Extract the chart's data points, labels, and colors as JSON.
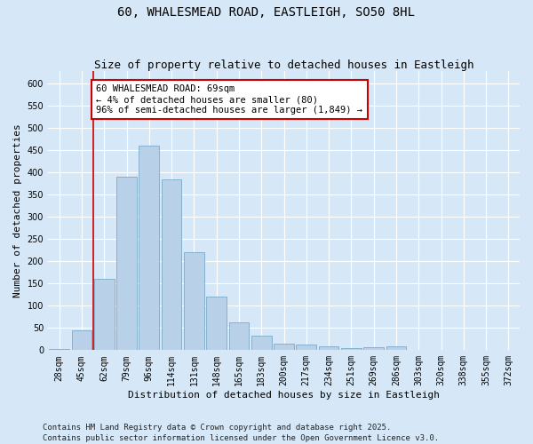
{
  "title": "60, WHALESMEAD ROAD, EASTLEIGH, SO50 8HL",
  "subtitle": "Size of property relative to detached houses in Eastleigh",
  "xlabel": "Distribution of detached houses by size in Eastleigh",
  "ylabel": "Number of detached properties",
  "categories": [
    "28sqm",
    "45sqm",
    "62sqm",
    "79sqm",
    "96sqm",
    "114sqm",
    "131sqm",
    "148sqm",
    "165sqm",
    "183sqm",
    "200sqm",
    "217sqm",
    "234sqm",
    "251sqm",
    "269sqm",
    "286sqm",
    "303sqm",
    "320sqm",
    "338sqm",
    "355sqm",
    "372sqm"
  ],
  "values": [
    2,
    45,
    160,
    390,
    460,
    385,
    220,
    120,
    63,
    33,
    14,
    13,
    8,
    5,
    6,
    8,
    0,
    0,
    0,
    0,
    0
  ],
  "bar_color": "#b8d0e8",
  "bar_edge_color": "#7aaac8",
  "vline_index": 2,
  "vline_color": "#cc0000",
  "annotation_text": "60 WHALESMEAD ROAD: 69sqm\n← 4% of detached houses are smaller (80)\n96% of semi-detached houses are larger (1,849) →",
  "annotation_box_facecolor": "#ffffff",
  "annotation_box_edgecolor": "#cc0000",
  "ylim": [
    0,
    630
  ],
  "yticks": [
    0,
    50,
    100,
    150,
    200,
    250,
    300,
    350,
    400,
    450,
    500,
    550,
    600
  ],
  "background_color": "#d6e8f7",
  "plot_background_color": "#d6e8f7",
  "footer": "Contains HM Land Registry data © Crown copyright and database right 2025.\nContains public sector information licensed under the Open Government Licence v3.0.",
  "title_fontsize": 10,
  "subtitle_fontsize": 9,
  "axis_label_fontsize": 8,
  "tick_fontsize": 7,
  "annotation_fontsize": 7.5,
  "footer_fontsize": 6.5
}
